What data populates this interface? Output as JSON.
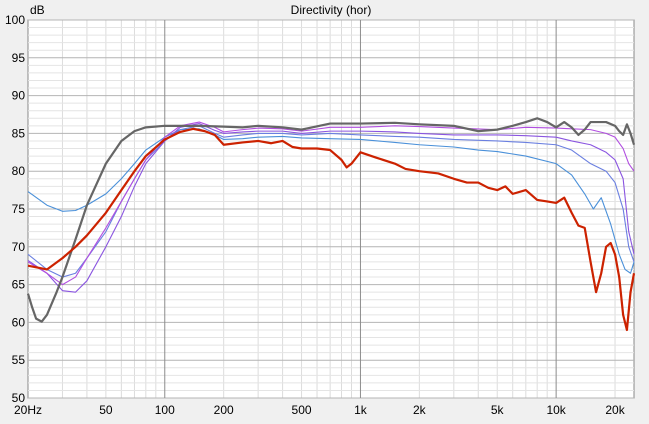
{
  "chart_data": {
    "type": "line",
    "title": "Directivity (hor)",
    "ylabel": "dB",
    "xlabel": "",
    "x_scale": "log",
    "xlim": [
      20,
      25000
    ],
    "ylim": [
      50,
      100
    ],
    "grid": true,
    "x_tick_values": [
      20,
      50,
      100,
      200,
      500,
      1000,
      2000,
      5000,
      10000,
      20000
    ],
    "x_tick_labels": [
      "20Hz",
      "50",
      "100",
      "200",
      "500",
      "1k",
      "2k",
      "5k",
      "10k",
      "20k"
    ],
    "y_tick_values": [
      50,
      55,
      60,
      65,
      70,
      75,
      80,
      85,
      90,
      95,
      100
    ],
    "y_tick_labels": [
      "50",
      "55",
      "60",
      "65",
      "70",
      "75",
      "80",
      "85",
      "90",
      "95",
      "100"
    ],
    "series": [
      {
        "color": "#4a90d9",
        "points": [
          [
            20,
            77.3
          ],
          [
            25,
            75.5
          ],
          [
            30,
            74.7
          ],
          [
            35,
            74.8
          ],
          [
            40,
            75.5
          ],
          [
            50,
            77
          ],
          [
            60,
            79
          ],
          [
            70,
            81
          ],
          [
            80,
            82.8
          ],
          [
            100,
            84.5
          ],
          [
            120,
            85.5
          ],
          [
            150,
            85.6
          ],
          [
            180,
            84.8
          ],
          [
            200,
            84.2
          ],
          [
            250,
            84.3
          ],
          [
            300,
            84.5
          ],
          [
            400,
            84.6
          ],
          [
            500,
            84.4
          ],
          [
            700,
            84.3
          ],
          [
            1000,
            84.2
          ],
          [
            1500,
            83.8
          ],
          [
            2000,
            83.5
          ],
          [
            3000,
            83.2
          ],
          [
            4000,
            82.8
          ],
          [
            5000,
            82.6
          ],
          [
            7000,
            82
          ],
          [
            10000,
            81
          ],
          [
            12000,
            79.5
          ],
          [
            14000,
            77
          ],
          [
            15500,
            75
          ],
          [
            17000,
            76.5
          ],
          [
            19000,
            73
          ],
          [
            21000,
            69
          ],
          [
            22500,
            67
          ],
          [
            24000,
            66.5
          ],
          [
            25000,
            68
          ]
        ]
      },
      {
        "color": "#6a7fe0",
        "points": [
          [
            20,
            69
          ],
          [
            25,
            67
          ],
          [
            30,
            66
          ],
          [
            35,
            66.5
          ],
          [
            40,
            68.5
          ],
          [
            50,
            72
          ],
          [
            60,
            76
          ],
          [
            70,
            79
          ],
          [
            80,
            81.5
          ],
          [
            100,
            84
          ],
          [
            120,
            85.5
          ],
          [
            150,
            86
          ],
          [
            180,
            85
          ],
          [
            200,
            84.5
          ],
          [
            250,
            84.8
          ],
          [
            300,
            85
          ],
          [
            400,
            85
          ],
          [
            500,
            84.8
          ],
          [
            700,
            85
          ],
          [
            1000,
            84.8
          ],
          [
            1500,
            84.6
          ],
          [
            2000,
            84.5
          ],
          [
            3000,
            84.2
          ],
          [
            5000,
            84
          ],
          [
            7000,
            83.8
          ],
          [
            10000,
            83.5
          ],
          [
            12000,
            82.8
          ],
          [
            15000,
            81
          ],
          [
            18000,
            80
          ],
          [
            20000,
            78.5
          ],
          [
            22000,
            75
          ],
          [
            23500,
            70
          ],
          [
            25000,
            68
          ]
        ]
      },
      {
        "color": "#8a55e0",
        "points": [
          [
            20,
            68.2
          ],
          [
            25,
            66.5
          ],
          [
            30,
            64.2
          ],
          [
            35,
            64
          ],
          [
            40,
            65.5
          ],
          [
            50,
            70
          ],
          [
            60,
            74
          ],
          [
            70,
            78
          ],
          [
            80,
            81
          ],
          [
            100,
            84
          ],
          [
            120,
            85.8
          ],
          [
            150,
            86.3
          ],
          [
            180,
            85.4
          ],
          [
            200,
            85
          ],
          [
            250,
            85.2
          ],
          [
            300,
            85.3
          ],
          [
            400,
            85.3
          ],
          [
            500,
            85
          ],
          [
            700,
            85.3
          ],
          [
            1000,
            85.3
          ],
          [
            1500,
            85.2
          ],
          [
            2000,
            85
          ],
          [
            3000,
            84.8
          ],
          [
            5000,
            84.8
          ],
          [
            7000,
            84.7
          ],
          [
            10000,
            84.5
          ],
          [
            12000,
            84
          ],
          [
            15000,
            83.5
          ],
          [
            18000,
            82.5
          ],
          [
            20000,
            81.5
          ],
          [
            22000,
            79
          ],
          [
            23500,
            72
          ],
          [
            25000,
            69
          ]
        ]
      },
      {
        "color": "#b14ee0",
        "points": [
          [
            20,
            68
          ],
          [
            25,
            66.5
          ],
          [
            30,
            65
          ],
          [
            35,
            66
          ],
          [
            40,
            68.5
          ],
          [
            50,
            72.5
          ],
          [
            60,
            76
          ],
          [
            70,
            79
          ],
          [
            80,
            81.5
          ],
          [
            100,
            84.5
          ],
          [
            120,
            86
          ],
          [
            150,
            86.5
          ],
          [
            180,
            85.8
          ],
          [
            200,
            85.2
          ],
          [
            250,
            85.5
          ],
          [
            300,
            85.7
          ],
          [
            400,
            85.6
          ],
          [
            500,
            85.3
          ],
          [
            700,
            85.8
          ],
          [
            1000,
            85.8
          ],
          [
            1500,
            86
          ],
          [
            2000,
            85.9
          ],
          [
            3000,
            85.7
          ],
          [
            5000,
            85.5
          ],
          [
            7000,
            85.8
          ],
          [
            10000,
            85.7
          ],
          [
            12000,
            85.6
          ],
          [
            15000,
            85.5
          ],
          [
            18000,
            85
          ],
          [
            20000,
            84.5
          ],
          [
            22000,
            83
          ],
          [
            23500,
            81
          ],
          [
            25000,
            80
          ]
        ]
      },
      {
        "color": "#666666",
        "points": [
          [
            20,
            63.8
          ],
          [
            21,
            62
          ],
          [
            22,
            60.5
          ],
          [
            23.5,
            60.1
          ],
          [
            25,
            61
          ],
          [
            28,
            64
          ],
          [
            30,
            66
          ],
          [
            35,
            71
          ],
          [
            40,
            75.5
          ],
          [
            50,
            81
          ],
          [
            60,
            84
          ],
          [
            70,
            85.3
          ],
          [
            80,
            85.8
          ],
          [
            100,
            86
          ],
          [
            120,
            86
          ],
          [
            150,
            86
          ],
          [
            200,
            85.9
          ],
          [
            250,
            85.8
          ],
          [
            300,
            86
          ],
          [
            400,
            85.8
          ],
          [
            500,
            85.5
          ],
          [
            700,
            86.3
          ],
          [
            1000,
            86.3
          ],
          [
            1500,
            86.4
          ],
          [
            2000,
            86.2
          ],
          [
            3000,
            86
          ],
          [
            4000,
            85.3
          ],
          [
            5000,
            85.5
          ],
          [
            6000,
            86
          ],
          [
            7000,
            86.5
          ],
          [
            8000,
            87
          ],
          [
            9000,
            86.5
          ],
          [
            10000,
            85.8
          ],
          [
            11000,
            86.5
          ],
          [
            12000,
            85.8
          ],
          [
            13000,
            84.8
          ],
          [
            14000,
            85.5
          ],
          [
            15000,
            86.5
          ],
          [
            18000,
            86.5
          ],
          [
            20000,
            86
          ],
          [
            21000,
            85.3
          ],
          [
            22000,
            84.8
          ],
          [
            23000,
            86.2
          ],
          [
            24000,
            85
          ],
          [
            25000,
            83.5
          ]
        ]
      },
      {
        "color": "#cc2200",
        "points": [
          [
            20,
            67.5
          ],
          [
            25,
            67
          ],
          [
            30,
            68.5
          ],
          [
            35,
            70
          ],
          [
            40,
            71.5
          ],
          [
            50,
            74.5
          ],
          [
            60,
            77.5
          ],
          [
            70,
            80
          ],
          [
            80,
            82
          ],
          [
            100,
            84.2
          ],
          [
            120,
            85.2
          ],
          [
            140,
            85.6
          ],
          [
            160,
            85.3
          ],
          [
            180,
            84.8
          ],
          [
            200,
            83.5
          ],
          [
            250,
            83.8
          ],
          [
            300,
            84
          ],
          [
            350,
            83.7
          ],
          [
            400,
            84
          ],
          [
            450,
            83.2
          ],
          [
            500,
            83
          ],
          [
            600,
            83
          ],
          [
            700,
            82.8
          ],
          [
            800,
            81.5
          ],
          [
            850,
            80.5
          ],
          [
            900,
            81
          ],
          [
            1000,
            82.5
          ],
          [
            1200,
            81.8
          ],
          [
            1500,
            81
          ],
          [
            1700,
            80.3
          ],
          [
            2000,
            80
          ],
          [
            2500,
            79.7
          ],
          [
            3000,
            79
          ],
          [
            3500,
            78.5
          ],
          [
            4000,
            78.5
          ],
          [
            4500,
            77.8
          ],
          [
            5000,
            77.5
          ],
          [
            5500,
            78
          ],
          [
            6000,
            77
          ],
          [
            7000,
            77.5
          ],
          [
            8000,
            76.2
          ],
          [
            9000,
            76
          ],
          [
            10000,
            75.8
          ],
          [
            11000,
            76.5
          ],
          [
            12000,
            74.5
          ],
          [
            13000,
            72.8
          ],
          [
            14000,
            72.5
          ],
          [
            15000,
            68
          ],
          [
            16000,
            64
          ],
          [
            17000,
            66.5
          ],
          [
            18000,
            70
          ],
          [
            19000,
            70.5
          ],
          [
            20000,
            69
          ],
          [
            21000,
            66
          ],
          [
            22000,
            61
          ],
          [
            23000,
            59
          ],
          [
            24000,
            64
          ],
          [
            25000,
            66.5
          ]
        ]
      }
    ]
  }
}
